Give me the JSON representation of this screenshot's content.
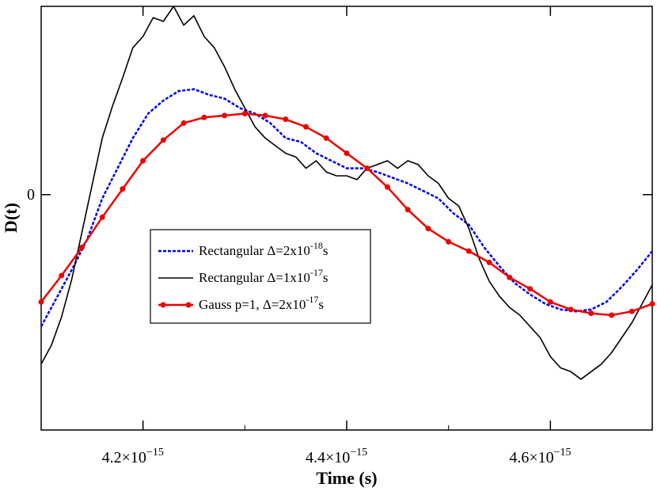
{
  "chart_data": {
    "type": "line",
    "xlabel": "Time (s)",
    "ylabel": "D(t)",
    "xlim": [
      4.1e-15,
      4.7e-15
    ],
    "ylim": [
      -1.25,
      1.0
    ],
    "x_ticks": [
      {
        "value": 4.2e-15,
        "label": "4.2×10",
        "exp": "−15"
      },
      {
        "value": 4.4e-15,
        "label": "4.4×10",
        "exp": "−15"
      },
      {
        "value": 4.6e-15,
        "label": "4.6×10",
        "exp": "−15"
      }
    ],
    "y_ticks": [
      {
        "value": 0,
        "label": "0"
      }
    ],
    "grid": false,
    "legend_position": "center-left",
    "series": [
      {
        "name": "Rectangular Δ=2x10-18s",
        "legend_main": "Rectangular Δ=2x10",
        "legend_exp": "-18",
        "legend_tail": "s",
        "color": "#0000ee",
        "style": "dashed",
        "marker": false,
        "x": [
          4.1e-15,
          4.115e-15,
          4.13e-15,
          4.145e-15,
          4.16e-15,
          4.175e-15,
          4.19e-15,
          4.205e-15,
          4.22e-15,
          4.235e-15,
          4.25e-15,
          4.265e-15,
          4.28e-15,
          4.295e-15,
          4.31e-15,
          4.325e-15,
          4.34e-15,
          4.355e-15,
          4.37e-15,
          4.385e-15,
          4.4e-15,
          4.415e-15,
          4.43e-15,
          4.445e-15,
          4.46e-15,
          4.475e-15,
          4.49e-15,
          4.505e-15,
          4.52e-15,
          4.535e-15,
          4.55e-15,
          4.565e-15,
          4.58e-15,
          4.595e-15,
          4.61e-15,
          4.625e-15,
          4.64e-15,
          4.655e-15,
          4.67e-15,
          4.685e-15,
          4.7e-15
        ],
        "values": [
          -0.7,
          -0.55,
          -0.4,
          -0.24,
          -0.02,
          0.14,
          0.3,
          0.43,
          0.5,
          0.55,
          0.56,
          0.53,
          0.51,
          0.46,
          0.43,
          0.38,
          0.3,
          0.28,
          0.22,
          0.18,
          0.14,
          0.14,
          0.12,
          0.09,
          0.06,
          0.02,
          -0.02,
          -0.1,
          -0.16,
          -0.28,
          -0.38,
          -0.47,
          -0.53,
          -0.58,
          -0.61,
          -0.62,
          -0.61,
          -0.57,
          -0.49,
          -0.4,
          -0.3
        ]
      },
      {
        "name": "Rectangular Δ=1x10-17s",
        "legend_main": "Rectangular Δ=1x10",
        "legend_exp": "-17",
        "legend_tail": "s",
        "color": "#000000",
        "style": "solid",
        "marker": false,
        "x": [
          4.1e-15,
          4.11e-15,
          4.12e-15,
          4.13e-15,
          4.14e-15,
          4.15e-15,
          4.16e-15,
          4.17e-15,
          4.18e-15,
          4.19e-15,
          4.2e-15,
          4.21e-15,
          4.22e-15,
          4.23e-15,
          4.24e-15,
          4.25e-15,
          4.26e-15,
          4.27e-15,
          4.28e-15,
          4.29e-15,
          4.3e-15,
          4.31e-15,
          4.32e-15,
          4.33e-15,
          4.34e-15,
          4.35e-15,
          4.36e-15,
          4.37e-15,
          4.38e-15,
          4.39e-15,
          4.4e-15,
          4.41e-15,
          4.42e-15,
          4.43e-15,
          4.44e-15,
          4.45e-15,
          4.46e-15,
          4.47e-15,
          4.48e-15,
          4.49e-15,
          4.5e-15,
          4.51e-15,
          4.52e-15,
          4.53e-15,
          4.54e-15,
          4.55e-15,
          4.56e-15,
          4.57e-15,
          4.58e-15,
          4.59e-15,
          4.6e-15,
          4.61e-15,
          4.62e-15,
          4.63e-15,
          4.64e-15,
          4.65e-15,
          4.66e-15,
          4.67e-15,
          4.68e-15,
          4.69e-15,
          4.7e-15
        ],
        "values": [
          -0.9,
          -0.8,
          -0.65,
          -0.45,
          -0.2,
          0.05,
          0.3,
          0.47,
          0.62,
          0.78,
          0.84,
          0.94,
          0.92,
          1.0,
          0.9,
          0.95,
          0.84,
          0.78,
          0.68,
          0.56,
          0.46,
          0.36,
          0.3,
          0.26,
          0.22,
          0.2,
          0.14,
          0.18,
          0.12,
          0.1,
          0.1,
          0.08,
          0.14,
          0.16,
          0.18,
          0.14,
          0.18,
          0.16,
          0.1,
          0.06,
          -0.02,
          -0.06,
          -0.18,
          -0.34,
          -0.46,
          -0.54,
          -0.6,
          -0.64,
          -0.7,
          -0.76,
          -0.86,
          -0.92,
          -0.94,
          -0.98,
          -0.94,
          -0.9,
          -0.84,
          -0.76,
          -0.68,
          -0.58,
          -0.48
        ]
      },
      {
        "name": "Gauss  p=1, Δ=2x10-17s",
        "legend_main": "Gauss  p=1, Δ=2x10",
        "legend_exp": "-17",
        "legend_tail": "s",
        "color": "#ee0000",
        "style": "solid",
        "marker": true,
        "x": [
          4.1e-15,
          4.12e-15,
          4.14e-15,
          4.16e-15,
          4.18e-15,
          4.2e-15,
          4.22e-15,
          4.24e-15,
          4.26e-15,
          4.28e-15,
          4.3e-15,
          4.32e-15,
          4.34e-15,
          4.36e-15,
          4.38e-15,
          4.4e-15,
          4.42e-15,
          4.44e-15,
          4.46e-15,
          4.48e-15,
          4.5e-15,
          4.52e-15,
          4.54e-15,
          4.56e-15,
          4.58e-15,
          4.6e-15,
          4.62e-15,
          4.64e-15,
          4.66e-15,
          4.68e-15,
          4.7e-15
        ],
        "values": [
          -0.57,
          -0.43,
          -0.28,
          -0.12,
          0.03,
          0.18,
          0.29,
          0.38,
          0.41,
          0.42,
          0.43,
          0.42,
          0.4,
          0.36,
          0.3,
          0.22,
          0.14,
          0.04,
          -0.08,
          -0.18,
          -0.25,
          -0.3,
          -0.36,
          -0.44,
          -0.5,
          -0.57,
          -0.61,
          -0.63,
          -0.64,
          -0.62,
          -0.58
        ]
      }
    ]
  }
}
